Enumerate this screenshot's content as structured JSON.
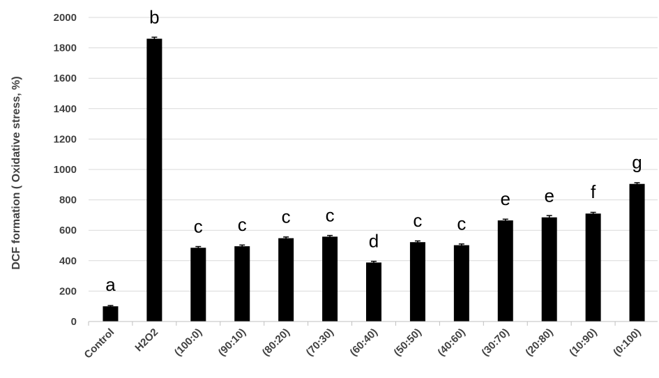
{
  "chart_data": {
    "type": "bar",
    "title": "",
    "xlabel": "",
    "ylabel": "DCF formation ( Oxidative stress, %)",
    "ylim": [
      0,
      2000
    ],
    "yticks": [
      0,
      200,
      400,
      600,
      800,
      1000,
      1200,
      1400,
      1600,
      1800,
      2000
    ],
    "grid": true,
    "legend": "none",
    "categories": [
      "Control",
      "H2O2",
      "(100:0)",
      "(90:10)",
      "(80:20)",
      "(70:30)",
      "(60:40)",
      "(50:50)",
      "(40:60)",
      "(30:70)",
      "(20:80)",
      "(10:90)",
      "(0:100)"
    ],
    "values": [
      100,
      1860,
      485,
      495,
      548,
      558,
      388,
      522,
      502,
      665,
      685,
      710,
      905
    ],
    "errors": [
      5,
      10,
      8,
      8,
      8,
      8,
      8,
      8,
      8,
      8,
      12,
      8,
      8
    ],
    "significance_letters": [
      "a",
      "b",
      "c",
      "c",
      "c",
      "c",
      "d",
      "c",
      "c",
      "e",
      "e",
      "f",
      "g"
    ],
    "colors": {
      "bar": "#000000",
      "grid": "#d9d9d9",
      "text": "#404040"
    }
  }
}
